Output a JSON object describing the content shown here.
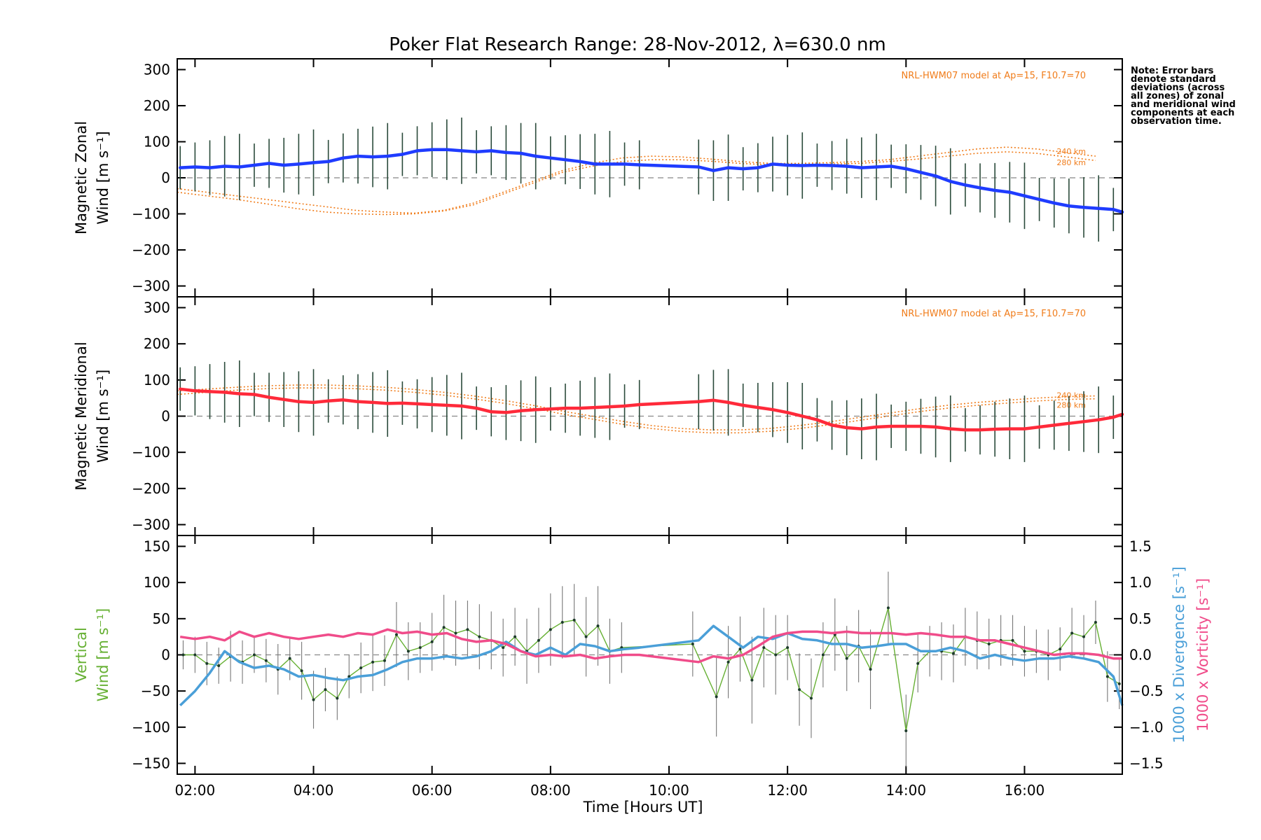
{
  "title": "Poker Flat Research Range: 28-Nov-2012, λ=630.0 nm",
  "note": "Note: Error bars denote standard deviations (across all zones) of zonal and meridional wind components at each observation time.",
  "xlabel": "Time [Hours UT]",
  "colors": {
    "zonal": "#1f3cff",
    "meridional": "#ff2a3a",
    "vertical": "#66b033",
    "divergence": "#4a9fd8",
    "vorticity": "#f04c8a",
    "model": "#f07c1a",
    "errorbar": "#2a4a3a",
    "zone_scatter": "#9aa6e6"
  },
  "chart_data": [
    {
      "type": "line",
      "panel": "zonal",
      "ylabel": [
        "Magnetic Zonal",
        "Wind [m s⁻¹]"
      ],
      "model_label": "NRL-HWM07 model at Ap=15, F10.7=70",
      "model_alt_labels": [
        "240 km",
        "280 km"
      ],
      "xlim": [
        1.7,
        17.65
      ],
      "ylim": [
        -330,
        330
      ],
      "yticks": [
        -300,
        -200,
        -100,
        0,
        100,
        200,
        300
      ],
      "x": [
        1.75,
        2.0,
        2.25,
        2.5,
        2.75,
        3.0,
        3.25,
        3.5,
        3.75,
        4.0,
        4.25,
        4.5,
        4.75,
        5.0,
        5.25,
        5.5,
        5.75,
        6.0,
        6.25,
        6.5,
        6.75,
        7.0,
        7.25,
        7.5,
        7.75,
        8.0,
        8.25,
        8.5,
        8.75,
        9.0,
        9.25,
        9.5,
        10.5,
        10.75,
        11.0,
        11.25,
        11.5,
        11.75,
        12.0,
        12.25,
        12.5,
        12.75,
        13.0,
        13.25,
        13.5,
        13.75,
        14.0,
        14.25,
        14.5,
        14.75,
        15.0,
        15.25,
        15.5,
        15.75,
        16.0,
        16.25,
        16.5,
        16.75,
        17.0,
        17.25,
        17.5,
        17.65
      ],
      "values": [
        28,
        30,
        28,
        32,
        30,
        35,
        40,
        35,
        38,
        42,
        45,
        55,
        60,
        58,
        60,
        65,
        75,
        78,
        78,
        75,
        72,
        75,
        70,
        68,
        60,
        55,
        50,
        45,
        38,
        38,
        38,
        36,
        30,
        20,
        28,
        25,
        28,
        38,
        35,
        34,
        35,
        34,
        32,
        28,
        30,
        32,
        25,
        15,
        5,
        -10,
        -20,
        -28,
        -35,
        -40,
        -50,
        -60,
        -70,
        -78,
        -82,
        -85,
        -88,
        -95
      ],
      "model_240": [
        -30,
        -40,
        -50,
        -60,
        -70,
        -80,
        -90,
        -95,
        -98,
        -90,
        -70,
        -40,
        -10,
        20,
        40,
        55,
        60,
        58,
        52,
        45,
        40,
        40,
        42,
        45,
        50,
        60,
        70,
        80,
        85,
        80,
        70,
        60
      ],
      "model_280": [
        -40,
        -50,
        -60,
        -72,
        -85,
        -95,
        -100,
        -102,
        -100,
        -92,
        -75,
        -45,
        -15,
        15,
        32,
        45,
        50,
        50,
        46,
        40,
        36,
        36,
        38,
        40,
        45,
        52,
        60,
        68,
        72,
        68,
        58,
        48
      ],
      "model_x": [
        1.7,
        2.2,
        2.7,
        3.2,
        3.7,
        4.2,
        4.7,
        5.2,
        5.7,
        6.2,
        6.7,
        7.2,
        7.7,
        8.2,
        8.7,
        9.2,
        9.7,
        10.2,
        10.7,
        11.2,
        11.7,
        12.2,
        12.7,
        13.2,
        13.7,
        14.2,
        14.7,
        15.2,
        15.7,
        16.2,
        16.7,
        17.2
      ]
    },
    {
      "type": "line",
      "panel": "meridional",
      "ylabel": [
        "Magnetic Meridional",
        "Wind [m s⁻¹]"
      ],
      "model_label": "NRL-HWM07 model at Ap=15, F10.7=70",
      "model_alt_labels": [
        "240 km",
        "280 km"
      ],
      "xlim": [
        1.7,
        17.65
      ],
      "ylim": [
        -330,
        330
      ],
      "yticks": [
        -300,
        -200,
        -100,
        0,
        100,
        200,
        300
      ],
      "x": [
        1.75,
        2.0,
        2.25,
        2.5,
        2.75,
        3.0,
        3.25,
        3.5,
        3.75,
        4.0,
        4.25,
        4.5,
        4.75,
        5.0,
        5.25,
        5.5,
        5.75,
        6.0,
        6.25,
        6.5,
        6.75,
        7.0,
        7.25,
        7.5,
        7.75,
        8.0,
        8.25,
        8.5,
        8.75,
        9.0,
        9.25,
        9.5,
        10.5,
        10.75,
        11.0,
        11.25,
        11.5,
        11.75,
        12.0,
        12.25,
        12.5,
        12.75,
        13.0,
        13.25,
        13.5,
        13.75,
        14.0,
        14.25,
        14.5,
        14.75,
        15.0,
        15.25,
        15.5,
        15.75,
        16.0,
        16.25,
        16.5,
        16.75,
        17.0,
        17.25,
        17.5,
        17.65
      ],
      "values": [
        75,
        70,
        68,
        66,
        62,
        60,
        52,
        46,
        40,
        38,
        42,
        45,
        40,
        38,
        35,
        36,
        34,
        32,
        30,
        28,
        22,
        12,
        10,
        15,
        18,
        20,
        22,
        22,
        24,
        26,
        28,
        32,
        40,
        44,
        38,
        30,
        24,
        18,
        10,
        0,
        -10,
        -25,
        -32,
        -35,
        -30,
        -28,
        -28,
        -28,
        -30,
        -35,
        -38,
        -38,
        -36,
        -35,
        -35,
        -30,
        -25,
        -20,
        -15,
        -10,
        -3,
        5
      ],
      "model_240": [
        70,
        75,
        80,
        84,
        86,
        86,
        84,
        80,
        74,
        66,
        56,
        44,
        30,
        14,
        0,
        -14,
        -26,
        -34,
        -38,
        -38,
        -34,
        -26,
        -16,
        -4,
        8,
        20,
        30,
        38,
        44,
        50,
        54,
        56
      ],
      "model_280": [
        60,
        66,
        72,
        76,
        78,
        78,
        76,
        72,
        66,
        58,
        48,
        36,
        22,
        6,
        -8,
        -22,
        -34,
        -42,
        -46,
        -46,
        -42,
        -34,
        -24,
        -12,
        0,
        12,
        22,
        30,
        36,
        42,
        46,
        48
      ],
      "model_x": [
        1.7,
        2.2,
        2.7,
        3.2,
        3.7,
        4.2,
        4.7,
        5.2,
        5.7,
        6.2,
        6.7,
        7.2,
        7.7,
        8.2,
        8.7,
        9.2,
        9.7,
        10.2,
        10.7,
        11.2,
        11.7,
        12.2,
        12.7,
        13.2,
        13.7,
        14.2,
        14.7,
        15.2,
        15.7,
        16.2,
        16.7,
        17.2
      ]
    },
    {
      "type": "line",
      "panel": "vertical",
      "ylabel": [
        "Vertical",
        "Wind [m s⁻¹]"
      ],
      "ylabel_right": [
        "1000 x Divergence [s⁻¹]",
        "1000 x Vorticity [s⁻¹]"
      ],
      "xlim": [
        1.7,
        17.65
      ],
      "ylim": [
        -165,
        165
      ],
      "yticks": [
        -150,
        -100,
        -50,
        0,
        50,
        100,
        150
      ],
      "ylim_right": [
        -1.65,
        1.65
      ],
      "yticks_right": [
        -1.5,
        -1.0,
        -0.5,
        0.0,
        0.5,
        1.0,
        1.5
      ],
      "xticks": [
        2,
        4,
        6,
        8,
        10,
        12,
        14,
        16
      ],
      "xtick_labels": [
        "02:00",
        "04:00",
        "06:00",
        "08:00",
        "10:00",
        "12:00",
        "14:00",
        "16:00"
      ],
      "series": [
        {
          "key": "vertical",
          "x": [
            1.8,
            2.0,
            2.2,
            2.4,
            2.6,
            2.8,
            3.0,
            3.2,
            3.4,
            3.6,
            3.8,
            4.0,
            4.2,
            4.4,
            4.6,
            4.8,
            5.0,
            5.2,
            5.4,
            5.6,
            5.8,
            6.0,
            6.2,
            6.4,
            6.6,
            6.8,
            7.0,
            7.2,
            7.4,
            7.6,
            7.8,
            8.0,
            8.2,
            8.4,
            8.6,
            8.8,
            9.0,
            9.2,
            10.4,
            10.8,
            11.0,
            11.2,
            11.4,
            11.6,
            11.8,
            12.0,
            12.2,
            12.4,
            12.6,
            12.8,
            13.0,
            13.2,
            13.4,
            13.7,
            14.0,
            14.2,
            14.4,
            14.6,
            14.8,
            15.0,
            15.2,
            15.4,
            15.6,
            15.8,
            16.0,
            16.2,
            16.4,
            16.6,
            16.8,
            17.0,
            17.2,
            17.4,
            17.6
          ],
          "values": [
            0,
            0,
            -12,
            -15,
            -2,
            -10,
            0,
            -8,
            -20,
            -5,
            -22,
            -62,
            -48,
            -60,
            -30,
            -18,
            -10,
            -8,
            28,
            5,
            10,
            18,
            38,
            30,
            35,
            25,
            20,
            10,
            25,
            5,
            20,
            35,
            45,
            48,
            25,
            40,
            5,
            10,
            15,
            -58,
            -10,
            8,
            -35,
            10,
            0,
            10,
            -48,
            -60,
            0,
            28,
            -5,
            12,
            -20,
            65,
            -105,
            -12,
            5,
            5,
            2,
            25,
            20,
            15,
            20,
            20,
            5,
            5,
            0,
            8,
            30,
            25,
            45,
            -30,
            -40
          ],
          "errors": [
            20,
            25,
            30,
            25,
            35,
            30,
            25,
            30,
            35,
            30,
            40,
            40,
            30,
            30,
            30,
            35,
            40,
            35,
            45,
            40,
            35,
            40,
            45,
            45,
            40,
            45,
            40,
            40,
            40,
            45,
            45,
            50,
            50,
            50,
            55,
            55,
            45,
            35,
            45,
            55,
            50,
            45,
            60,
            55,
            55,
            45,
            50,
            55,
            45,
            50,
            45,
            50,
            55,
            50,
            50,
            40,
            35,
            40,
            40,
            40,
            40,
            35,
            35,
            35,
            35,
            30,
            35,
            30,
            35,
            30,
            30,
            35,
            35
          ]
        },
        {
          "key": "divergence",
          "axis": "right",
          "x": [
            1.75,
            2.0,
            2.25,
            2.5,
            2.75,
            3.0,
            3.25,
            3.5,
            3.75,
            4.0,
            4.25,
            4.5,
            4.75,
            5.0,
            5.25,
            5.5,
            5.75,
            6.0,
            6.25,
            6.5,
            6.75,
            7.0,
            7.25,
            7.5,
            7.75,
            8.0,
            8.25,
            8.5,
            8.75,
            9.0,
            9.25,
            9.5,
            10.5,
            10.75,
            11.0,
            11.25,
            11.5,
            11.75,
            12.0,
            12.25,
            12.5,
            12.75,
            13.0,
            13.25,
            13.5,
            13.75,
            14.0,
            14.25,
            14.5,
            14.75,
            15.0,
            15.25,
            15.5,
            15.75,
            16.0,
            16.25,
            16.5,
            16.75,
            17.0,
            17.25,
            17.5,
            17.65
          ],
          "values": [
            -0.7,
            -0.5,
            -0.25,
            0.05,
            -0.1,
            -0.18,
            -0.15,
            -0.2,
            -0.3,
            -0.28,
            -0.32,
            -0.35,
            -0.3,
            -0.28,
            -0.2,
            -0.1,
            -0.05,
            -0.05,
            -0.02,
            -0.05,
            -0.02,
            0.05,
            0.18,
            0.05,
            0.0,
            0.1,
            0.0,
            0.15,
            0.12,
            0.05,
            0.08,
            0.1,
            0.2,
            0.4,
            0.25,
            0.1,
            0.25,
            0.22,
            0.3,
            0.22,
            0.2,
            0.15,
            0.15,
            0.1,
            0.12,
            0.15,
            0.15,
            0.05,
            0.05,
            0.1,
            0.05,
            -0.05,
            0.0,
            -0.05,
            -0.08,
            -0.05,
            -0.05,
            -0.02,
            -0.05,
            -0.1,
            -0.3,
            -0.7
          ]
        },
        {
          "key": "vorticity",
          "axis": "right",
          "x": [
            1.75,
            2.0,
            2.25,
            2.5,
            2.75,
            3.0,
            3.25,
            3.5,
            3.75,
            4.0,
            4.25,
            4.5,
            4.75,
            5.0,
            5.25,
            5.5,
            5.75,
            6.0,
            6.25,
            6.5,
            6.75,
            7.0,
            7.25,
            7.5,
            7.75,
            8.0,
            8.25,
            8.5,
            8.75,
            9.0,
            9.25,
            9.5,
            10.5,
            10.75,
            11.0,
            11.25,
            11.5,
            11.75,
            12.0,
            12.25,
            12.5,
            12.75,
            13.0,
            13.25,
            13.5,
            13.75,
            14.0,
            14.25,
            14.5,
            14.75,
            15.0,
            15.25,
            15.5,
            15.75,
            16.0,
            16.25,
            16.5,
            16.75,
            17.0,
            17.25,
            17.5,
            17.65
          ],
          "values": [
            0.25,
            0.22,
            0.25,
            0.2,
            0.32,
            0.25,
            0.3,
            0.25,
            0.22,
            0.25,
            0.28,
            0.25,
            0.3,
            0.28,
            0.35,
            0.3,
            0.32,
            0.28,
            0.3,
            0.22,
            0.18,
            0.2,
            0.15,
            0.05,
            -0.02,
            0.0,
            -0.02,
            0.0,
            -0.05,
            -0.02,
            0.0,
            0.0,
            -0.1,
            -0.02,
            -0.05,
            0.0,
            0.12,
            0.25,
            0.3,
            0.32,
            0.32,
            0.3,
            0.32,
            0.3,
            0.3,
            0.3,
            0.28,
            0.3,
            0.28,
            0.25,
            0.25,
            0.2,
            0.2,
            0.15,
            0.1,
            0.05,
            0.0,
            0.02,
            0.02,
            0.0,
            -0.05,
            -0.05
          ]
        }
      ]
    }
  ]
}
